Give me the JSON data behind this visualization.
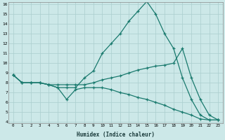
{
  "xlabel": "Humidex (Indice chaleur)",
  "x": [
    0,
    1,
    2,
    3,
    4,
    5,
    6,
    7,
    8,
    9,
    10,
    11,
    12,
    13,
    14,
    15,
    16,
    17,
    18,
    19,
    20,
    21,
    22,
    23
  ],
  "line_peak": [
    8.8,
    8.0,
    8.0,
    8.0,
    7.8,
    7.5,
    7.5,
    7.5,
    8.5,
    9.2,
    11.0,
    12.0,
    13.0,
    14.3,
    15.3,
    16.3,
    15.0,
    13.0,
    11.5,
    8.5,
    6.3,
    4.7,
    4.2,
    4.2
  ],
  "line_mid": [
    8.8,
    8.0,
    8.0,
    8.0,
    7.8,
    7.8,
    7.8,
    7.8,
    7.8,
    8.0,
    8.3,
    8.5,
    8.7,
    9.0,
    9.3,
    9.5,
    9.7,
    9.8,
    10.0,
    11.5,
    8.5,
    6.3,
    4.7,
    4.2
  ],
  "line_bot": [
    8.8,
    8.0,
    8.0,
    8.0,
    7.8,
    7.5,
    6.3,
    7.3,
    7.5,
    7.5,
    7.5,
    7.3,
    7.0,
    6.8,
    6.5,
    6.3,
    6.0,
    5.7,
    5.3,
    5.0,
    4.7,
    4.3,
    4.2,
    4.2
  ],
  "line_color": "#1a7a6e",
  "bg_color": "#cce8e8",
  "grid_color": "#aacece",
  "ylim": [
    4,
    16
  ],
  "xlim": [
    -0.5,
    23.5
  ],
  "yticks": [
    4,
    5,
    6,
    7,
    8,
    9,
    10,
    11,
    12,
    13,
    14,
    15,
    16
  ],
  "xticks": [
    0,
    1,
    2,
    3,
    4,
    5,
    6,
    7,
    8,
    9,
    10,
    11,
    12,
    13,
    14,
    15,
    16,
    17,
    18,
    19,
    20,
    21,
    22,
    23
  ]
}
